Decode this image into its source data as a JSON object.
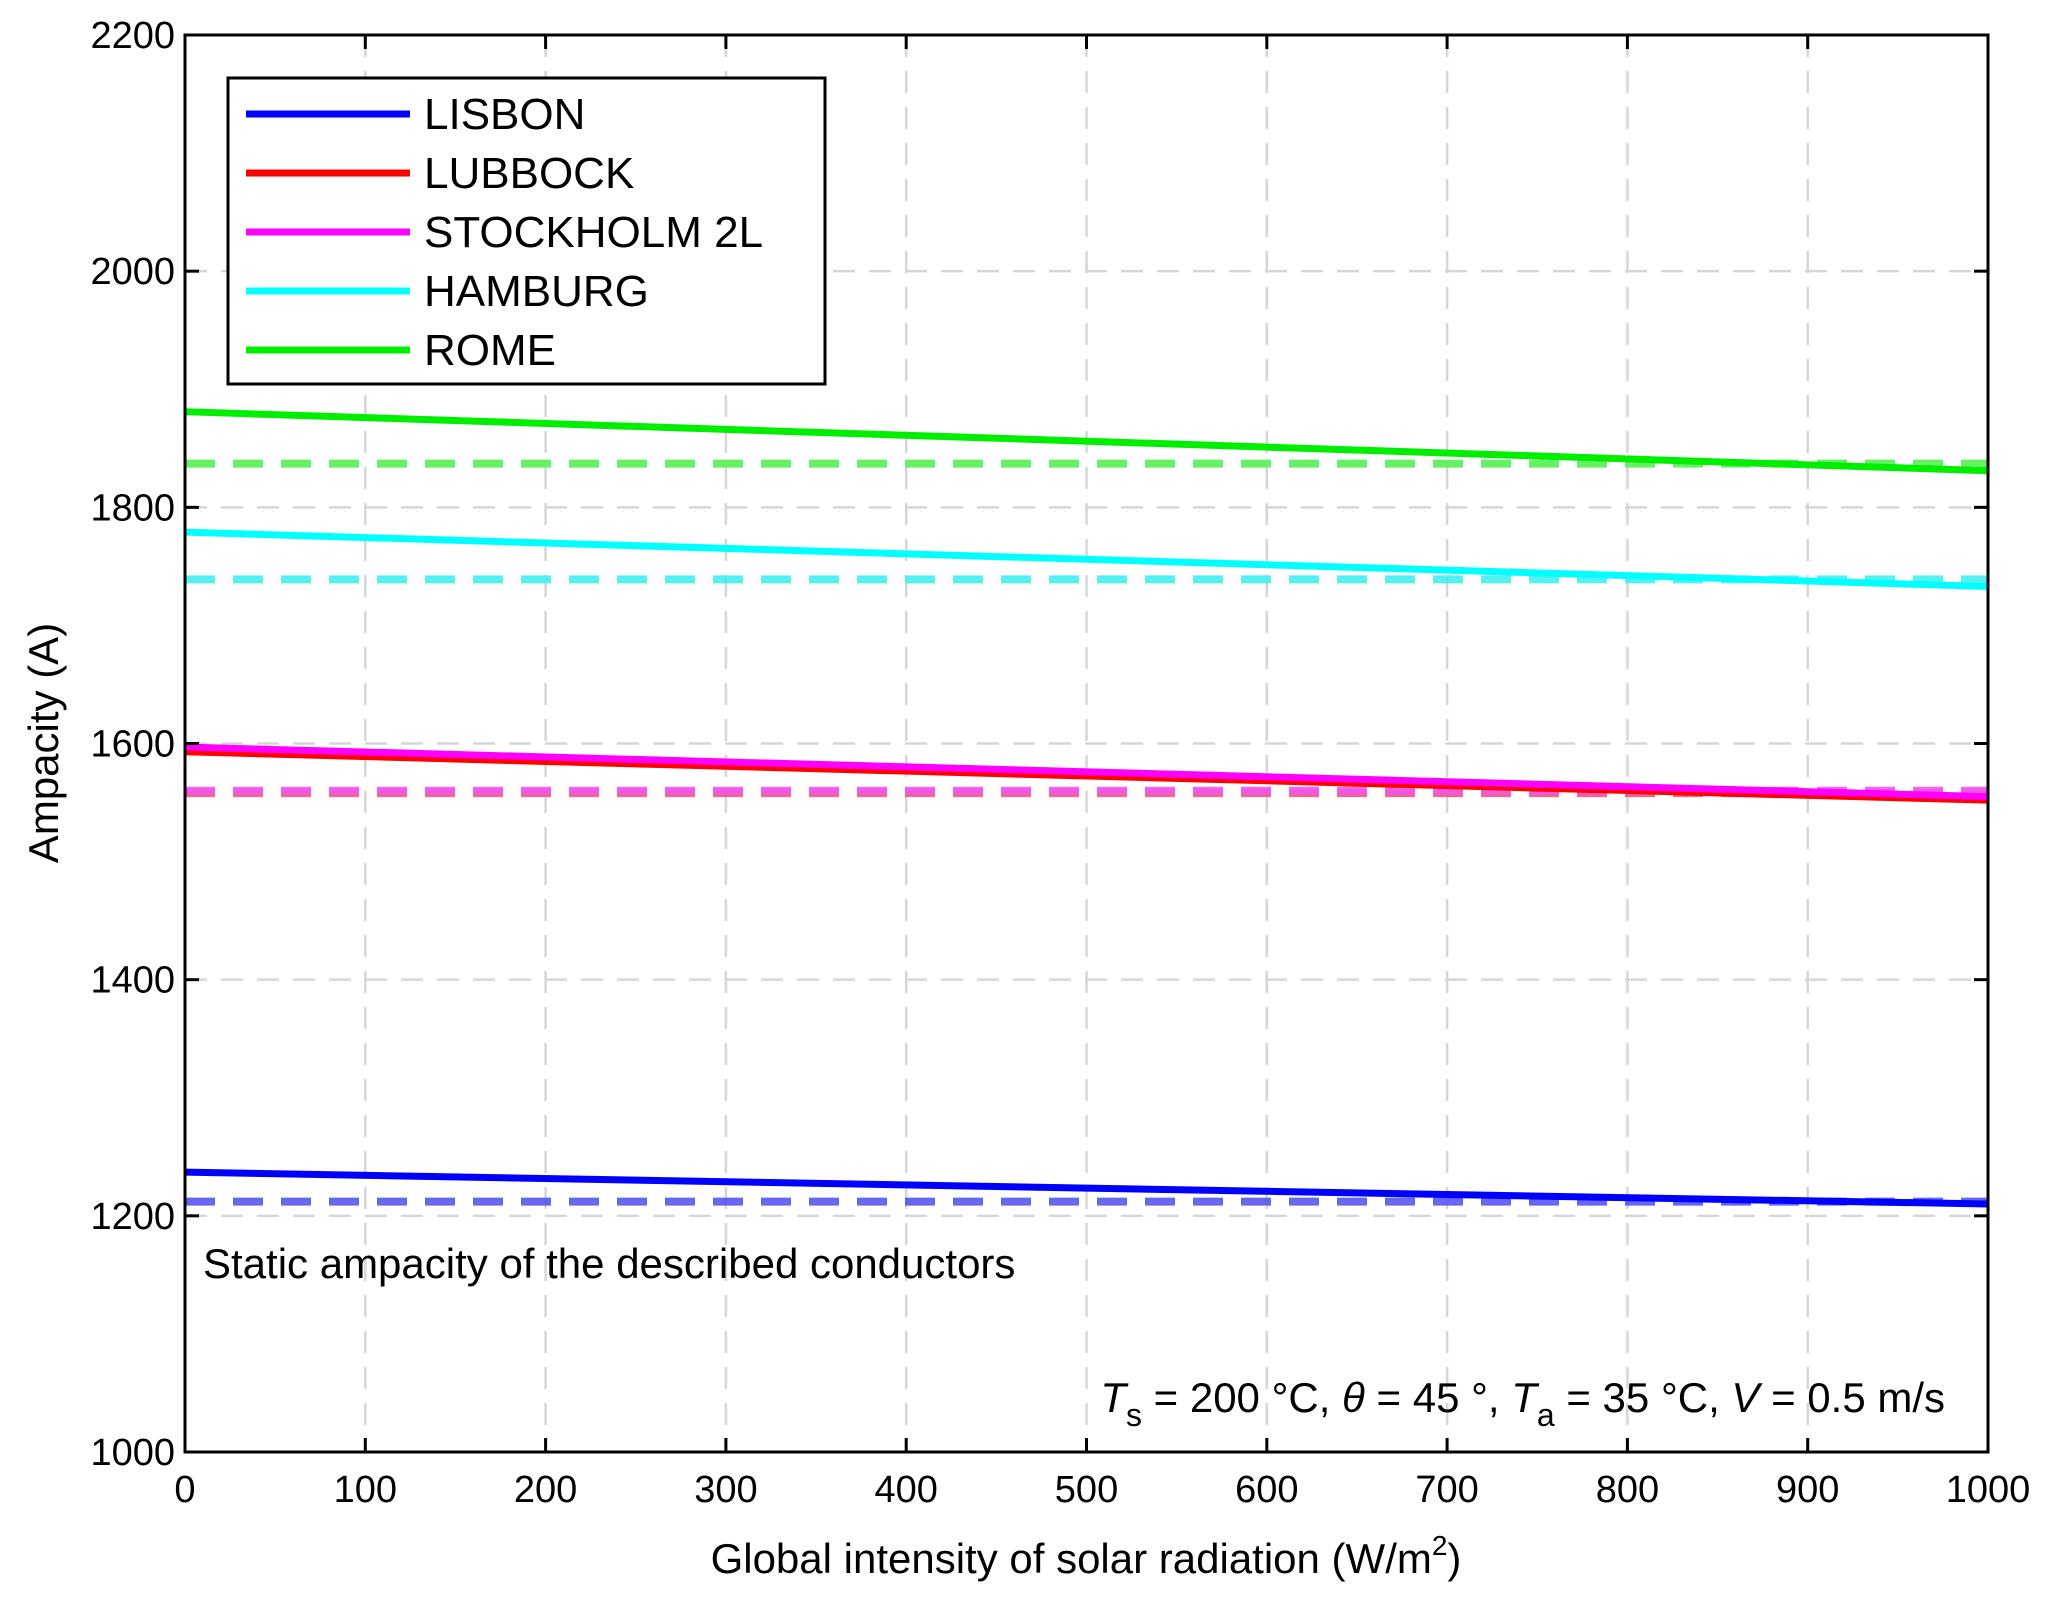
{
  "chart_data": {
    "type": "line",
    "title": "",
    "xlabel": "Global intensity of solar radiation (W/m",
    "xlabel_sup": "2",
    "xlabel_end": ")",
    "ylabel": "Ampacity (A)",
    "xlim": [
      0,
      1000
    ],
    "ylim": [
      1000,
      2200
    ],
    "xticks": [
      0,
      100,
      200,
      300,
      400,
      500,
      600,
      700,
      800,
      900,
      1000
    ],
    "yticks": [
      1000,
      1200,
      1400,
      1600,
      1800,
      2000,
      2200
    ],
    "grid": true,
    "legend_position": "top-left",
    "series": [
      {
        "name": "LISBON",
        "color": "#0000ff",
        "dashed_color": "#5555ee",
        "x": [
          0,
          1000
        ],
        "values": [
          1237,
          1210
        ],
        "static_value": 1212
      },
      {
        "name": "LUBBOCK",
        "color": "#ff0000",
        "dashed_color": "#ee5577",
        "x": [
          0,
          1000
        ],
        "values": [
          1593,
          1552
        ],
        "static_value": 1558
      },
      {
        "name": "STOCKHOLM 2L",
        "color": "#ff00ff",
        "dashed_color": "#ee55ee",
        "x": [
          0,
          1000
        ],
        "values": [
          1597,
          1555
        ],
        "static_value": 1560
      },
      {
        "name": "HAMBURG",
        "color": "#00ffff",
        "dashed_color": "#44eeee",
        "x": [
          0,
          1000
        ],
        "values": [
          1779,
          1733
        ],
        "static_value": 1739
      },
      {
        "name": "ROME",
        "color": "#00ee00",
        "dashed_color": "#55ee55",
        "x": [
          0,
          1000
        ],
        "values": [
          1881,
          1831
        ],
        "static_value": 1837
      }
    ],
    "annotations": {
      "static_note": "Static ampacity of the described conductors",
      "conditions": {
        "ts_var": "T",
        "ts_sub": "s",
        "ts_rest": " = 200 °C, ",
        "theta_var": "θ",
        "theta_rest": " = 45 °, ",
        "ta_var": "T",
        "ta_sub": "a",
        "ta_rest": " = 35 °C, ",
        "v_var": "V",
        "v_rest": " = 0.5 m/s"
      }
    }
  }
}
